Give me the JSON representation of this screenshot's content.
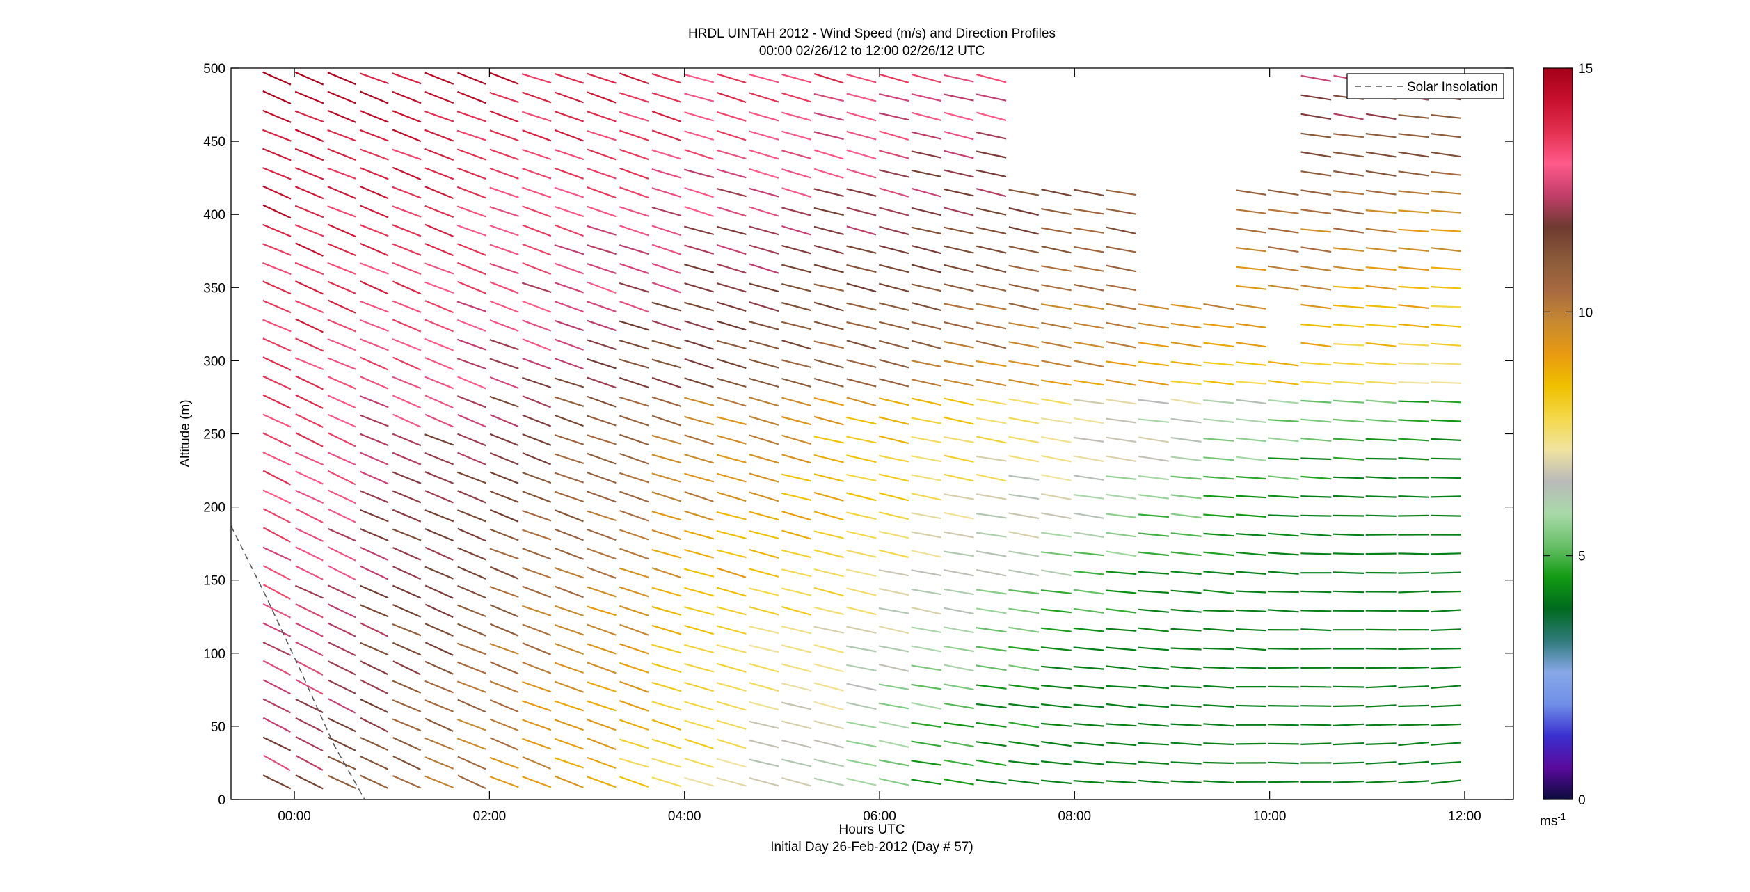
{
  "chart_data": {
    "type": "quiver",
    "title": "HRDL UINTAH 2012 - Wind Speed (m/s) and Direction Profiles",
    "subtitle": "00:00 02/26/12 to 12:00 02/26/12  UTC",
    "xlabel": "Hours UTC",
    "xlabel2": "Initial Day 26-Feb-2012 (Day # 57)",
    "ylabel": "Altitude (m)",
    "xlim": [
      -0.65,
      12.5
    ],
    "ylim": [
      0,
      500
    ],
    "xticks": [
      0,
      2,
      4,
      6,
      8,
      10,
      12
    ],
    "xtick_labels": [
      "00:00",
      "02:00",
      "04:00",
      "06:00",
      "08:00",
      "10:00",
      "12:00"
    ],
    "yticks": [
      0,
      50,
      100,
      150,
      200,
      250,
      300,
      350,
      400,
      450,
      500
    ],
    "ytick_labels": [
      "0",
      "50",
      "100",
      "150",
      "200",
      "250",
      "300",
      "350",
      "400",
      "450",
      "500"
    ],
    "grid": false,
    "legend": {
      "entries": [
        "Solar Insolation"
      ],
      "placement": "top-right"
    },
    "colorbar": {
      "range": [
        0,
        15
      ],
      "ticks": [
        0,
        5,
        10,
        15
      ],
      "tick_labels": [
        "0",
        "5",
        "10",
        "15"
      ],
      "unit_base": "ms",
      "unit_exp": "-1",
      "colors": [
        "#0b0b3d",
        "#5a0a9c",
        "#3a2fd0",
        "#6f8fe8",
        "#88a8e8",
        "#2f7a7a",
        "#006a1e",
        "#129b12",
        "#6ac06a",
        "#a9d9a9",
        "#b9b9b9",
        "#f0e3a0",
        "#f4d84a",
        "#f0c000",
        "#e89a10",
        "#c88a30",
        "#a86a40",
        "#8a5a3a",
        "#6e3a30",
        "#c23e6a",
        "#ff5a8a",
        "#e33050",
        "#c8102e",
        "#a30019"
      ]
    },
    "solar_insolation": {
      "style": "dashed",
      "color": "#555555",
      "x": [
        -0.65,
        -0.3,
        0.05,
        0.4,
        0.72
      ],
      "y": [
        187,
        140,
        90,
        38,
        0
      ]
    },
    "wind_field": {
      "x_start": -0.18,
      "x_step": 0.333,
      "y_start": 12,
      "y_step": 13,
      "rows": 38,
      "cols": 37,
      "coverage": [
        {
          "alt": [
            0,
            300
          ],
          "x": [
            -0.2,
            11.85
          ]
        },
        {
          "alt": [
            300,
            345
          ],
          "x": [
            -0.2,
            9.9
          ]
        },
        {
          "alt": [
            300,
            345
          ],
          "x": [
            10.4,
            11.85
          ]
        },
        {
          "alt": [
            345,
            420
          ],
          "x": [
            -0.2,
            8.6
          ]
        },
        {
          "alt": [
            345,
            420
          ],
          "x": [
            9.7,
            11.85
          ]
        },
        {
          "alt": [
            420,
            500
          ],
          "x": [
            -0.2,
            7.2
          ]
        },
        {
          "alt": [
            420,
            500
          ],
          "x": [
            10.4,
            11.85
          ]
        }
      ]
    }
  }
}
